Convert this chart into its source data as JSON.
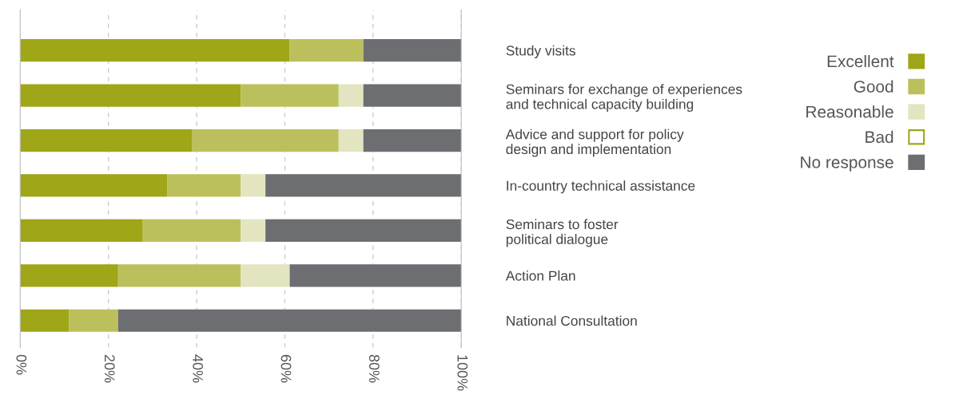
{
  "chart_data": {
    "type": "bar",
    "orientation": "horizontal",
    "stacked": true,
    "categories": [
      "Study visits",
      "Seminars for exchange of experiences\nand technical capacity building",
      "Advice and support for policy\ndesign and implementation",
      "In-country technical assistance",
      "Seminars to foster\npolitical dialogue",
      "Action Plan",
      "National Consultation"
    ],
    "series": [
      {
        "name": "Excellent",
        "color": "#9fa617",
        "values": [
          61.1,
          50,
          38.9,
          33.3,
          27.8,
          22.2,
          11.1
        ]
      },
      {
        "name": "Good",
        "color": "#bcc05c",
        "values": [
          16.7,
          22.2,
          33.3,
          16.7,
          22.2,
          27.8,
          11.1
        ]
      },
      {
        "name": "Reasonable",
        "color": "#e2e5bf",
        "values": [
          0,
          5.6,
          5.6,
          5.6,
          5.6,
          11.1,
          0
        ]
      },
      {
        "name": "Bad",
        "color": "#ffffff",
        "values": [
          0,
          0,
          0,
          0,
          0,
          0,
          0
        ]
      },
      {
        "name": "No response",
        "color": "#6d6e71",
        "values": [
          22.2,
          22.2,
          22.2,
          44.4,
          44.4,
          38.9,
          77.8
        ]
      }
    ],
    "xlim": [
      0,
      100
    ],
    "xticks": [
      {
        "value": 0,
        "label": "0%"
      },
      {
        "value": 20,
        "label": "20%"
      },
      {
        "value": 40,
        "label": "40%"
      },
      {
        "value": 60,
        "label": "60%"
      },
      {
        "value": 80,
        "label": "80%"
      },
      {
        "value": 100,
        "label": "100%"
      }
    ],
    "grid": "x",
    "legend": "right"
  }
}
